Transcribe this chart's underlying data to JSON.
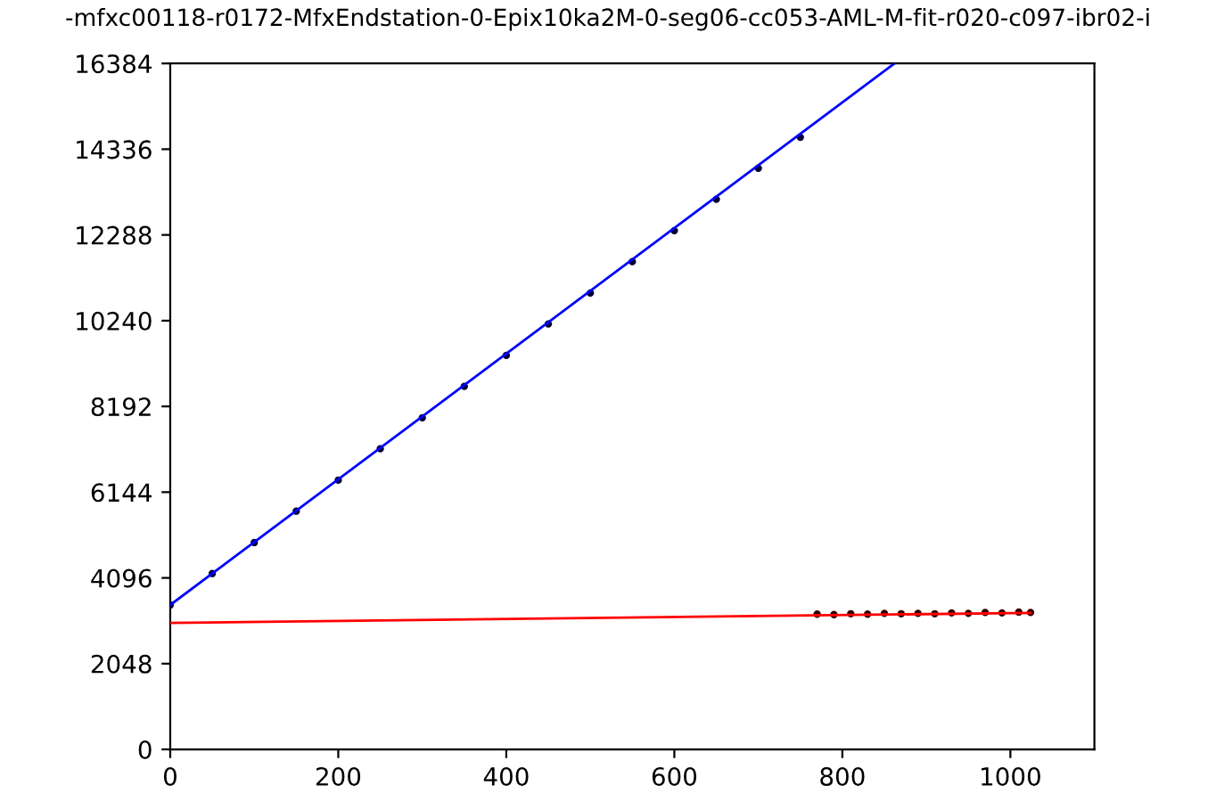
{
  "chart_data": {
    "type": "scatter",
    "title": "-mfxc00118-r0172-MfxEndstation-0-Epix10ka2M-0-seg06-cc053-AML-M-fit-r020-c097-ibr02-i",
    "series": [
      {
        "marker": "circle",
        "color": "#000033",
        "x": [
          0,
          50,
          100,
          150,
          200,
          250,
          300,
          350,
          400,
          450,
          500,
          550,
          600,
          650,
          700,
          750
        ],
        "values": [
          3450,
          4200,
          4940,
          5690,
          6430,
          7180,
          7920,
          8670,
          9410,
          10160,
          10900,
          11650,
          12390,
          13140,
          13880,
          14620
        ]
      },
      {
        "type": "line",
        "marker": "none",
        "color": "#0000ff",
        "x": [
          0,
          862
        ],
        "values": [
          3450,
          16384
        ]
      },
      {
        "marker": "circle",
        "color": "#330000",
        "x": [
          770,
          790,
          810,
          830,
          850,
          870,
          890,
          910,
          930,
          950,
          970,
          990,
          1010,
          1024
        ],
        "values": [
          3230,
          3220,
          3240,
          3230,
          3250,
          3240,
          3250,
          3240,
          3260,
          3250,
          3270,
          3260,
          3280,
          3270
        ]
      },
      {
        "type": "line",
        "marker": "none",
        "color": "#ff0000",
        "x": [
          0,
          1024
        ],
        "values": [
          3020,
          3260
        ]
      }
    ],
    "xlim": [
      0,
      1100
    ],
    "xticks": [
      0,
      200,
      400,
      600,
      800,
      1000
    ],
    "ylim": [
      0,
      16384
    ],
    "yticks": [
      0,
      2048,
      4096,
      6144,
      8192,
      10240,
      12288,
      14336,
      16384
    ],
    "grid": false,
    "legend": false
  }
}
